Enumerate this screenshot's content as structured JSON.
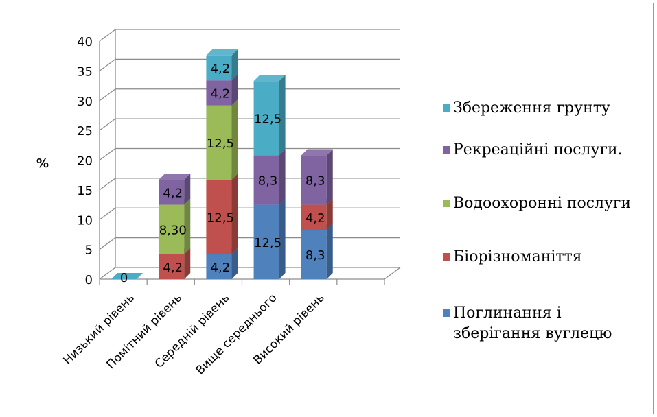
{
  "chart_data": {
    "type": "bar",
    "stacked": true,
    "three_d": true,
    "ylabel": "%",
    "ylim": [
      0,
      40
    ],
    "yticks": [
      "0",
      "5",
      "10",
      "15",
      "20",
      "25",
      "30",
      "35",
      "40"
    ],
    "grid": true,
    "legend_position": "right",
    "categories": [
      "Низький рівень",
      "Помітний рівень",
      "Середній рівень",
      "Вище середнього",
      "Високий рівень"
    ],
    "series": [
      {
        "name": "Поглинання і зберігання вуглецю",
        "color": "#4F81BD",
        "values": [
          0,
          0,
          4.2,
          12.5,
          8.3
        ],
        "labels": [
          "",
          "",
          "4,2",
          "12,5",
          "8,3"
        ]
      },
      {
        "name": "Біорізноманіття",
        "color": "#C0504D",
        "values": [
          0,
          4.2,
          12.5,
          0,
          4.2
        ],
        "labels": [
          "",
          "4,2",
          "12,5",
          "",
          "4,2"
        ]
      },
      {
        "name": "Водоохоронні послуги",
        "color": "#9BBB59",
        "values": [
          0,
          8.3,
          12.5,
          0,
          0
        ],
        "labels": [
          "",
          "8,30",
          "12,5",
          "",
          ""
        ]
      },
      {
        "name": "Рекреаційні послуги.",
        "color": "#8064A2",
        "values": [
          0,
          4.2,
          4.2,
          8.3,
          8.3
        ],
        "labels": [
          "",
          "4,2",
          "4,2",
          "8,3",
          "8,3"
        ]
      },
      {
        "name": "Збереження грунту",
        "color": "#4BACC6",
        "values": [
          0,
          0,
          4.2,
          12.5,
          0
        ],
        "labels": [
          "0",
          "",
          "4,2",
          "12,5",
          ""
        ]
      }
    ],
    "legend_lines": [
      [
        "Збереження грунту"
      ],
      [
        "Рекреаційні послуги."
      ],
      [
        "Водоохоронні послуги"
      ],
      [
        "Біорізноманіття"
      ],
      [
        "Поглинання і",
        "зберігання вуглецю"
      ]
    ]
  }
}
